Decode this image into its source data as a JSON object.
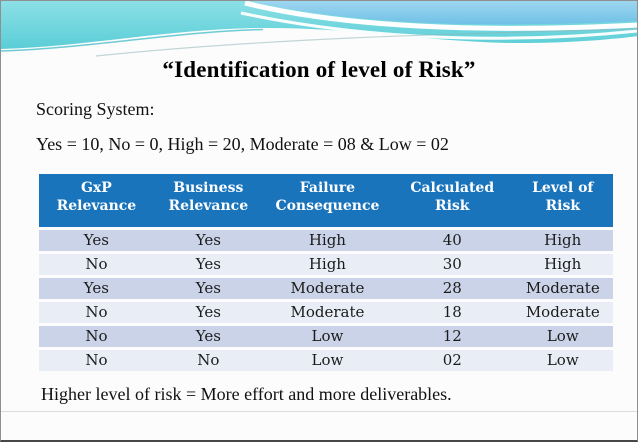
{
  "slide": {
    "title": "“Identification of level of Risk”",
    "scoring_label": "Scoring System:",
    "scoring_values": "Yes = 10, No = 0, High = 20, Moderate = 08 & Low = 02",
    "footnote": "Higher level of risk = More effort and more deliverables."
  },
  "table": {
    "headers": [
      "GxP Relevance",
      "Business Relevance",
      "Failure Consequence",
      "Calculated Risk",
      "Level of Risk"
    ],
    "rows": [
      [
        "Yes",
        "Yes",
        "High",
        "40",
        "High"
      ],
      [
        "No",
        "Yes",
        "High",
        "30",
        "High"
      ],
      [
        "Yes",
        "Yes",
        "Moderate",
        "28",
        "Moderate"
      ],
      [
        "No",
        "Yes",
        "Moderate",
        "18",
        "Moderate"
      ],
      [
        "No",
        "Yes",
        "Low",
        "12",
        "Low"
      ],
      [
        "No",
        "No",
        "Low",
        "02",
        "Low"
      ]
    ]
  },
  "colors": {
    "table_header_bg": "#1a74bc",
    "band_dark": "#cad3e7",
    "band_light": "#e9edf6",
    "banner_teal": "#52cad4",
    "banner_sky_blue": "#6fc0e6"
  }
}
